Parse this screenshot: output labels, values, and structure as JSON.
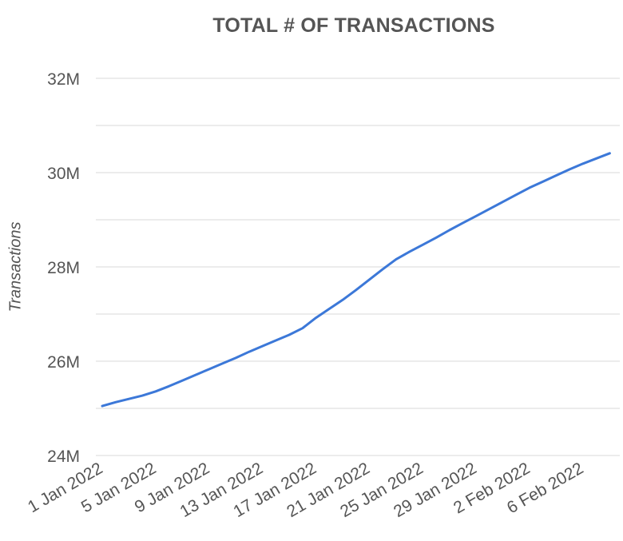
{
  "chart_data": {
    "type": "line",
    "title": "TOTAL # OF TRANSACTIONS",
    "xlabel": "",
    "ylabel": "Transactions",
    "ylim": [
      24000000,
      32000000
    ],
    "yticks": [
      {
        "value": 24000000,
        "label": "24M"
      },
      {
        "value": 26000000,
        "label": "26M"
      },
      {
        "value": 28000000,
        "label": "28M"
      },
      {
        "value": 30000000,
        "label": "30M"
      },
      {
        "value": 32000000,
        "label": "32M"
      }
    ],
    "minor_gridlines": [
      25000000,
      27000000,
      29000000,
      31000000
    ],
    "xtick_labels": [
      "1 Jan 2022",
      "5 Jan 2022",
      "9 Jan 2022",
      "13 Jan 2022",
      "17 Jan 2022",
      "21 Jan 2022",
      "25 Jan 2022",
      "29 Jan 2022",
      "2 Feb 2022",
      "6 Feb 2022"
    ],
    "grid": true,
    "legend": "none",
    "line_color": "#3c78d8",
    "series": [
      {
        "name": "Transactions",
        "x": [
          "2022-01-01",
          "2022-01-02",
          "2022-01-03",
          "2022-01-04",
          "2022-01-05",
          "2022-01-06",
          "2022-01-07",
          "2022-01-08",
          "2022-01-09",
          "2022-01-10",
          "2022-01-11",
          "2022-01-12",
          "2022-01-13",
          "2022-01-14",
          "2022-01-15",
          "2022-01-16",
          "2022-01-17",
          "2022-01-18",
          "2022-01-19",
          "2022-01-20",
          "2022-01-21",
          "2022-01-22",
          "2022-01-23",
          "2022-01-24",
          "2022-01-25",
          "2022-01-26",
          "2022-01-27",
          "2022-01-28",
          "2022-01-29",
          "2022-01-30",
          "2022-01-31",
          "2022-02-01",
          "2022-02-02",
          "2022-02-03",
          "2022-02-04",
          "2022-02-05",
          "2022-02-06",
          "2022-02-07",
          "2022-02-08"
        ],
        "values": [
          25050000,
          25130000,
          25200000,
          25270000,
          25360000,
          25470000,
          25590000,
          25710000,
          25830000,
          25950000,
          26070000,
          26200000,
          26320000,
          26440000,
          26560000,
          26700000,
          26920000,
          27110000,
          27300000,
          27510000,
          27730000,
          27950000,
          28160000,
          28320000,
          28470000,
          28620000,
          28780000,
          28930000,
          29080000,
          29230000,
          29380000,
          29530000,
          29680000,
          29810000,
          29940000,
          30070000,
          30190000,
          30300000,
          30410000
        ]
      }
    ]
  }
}
